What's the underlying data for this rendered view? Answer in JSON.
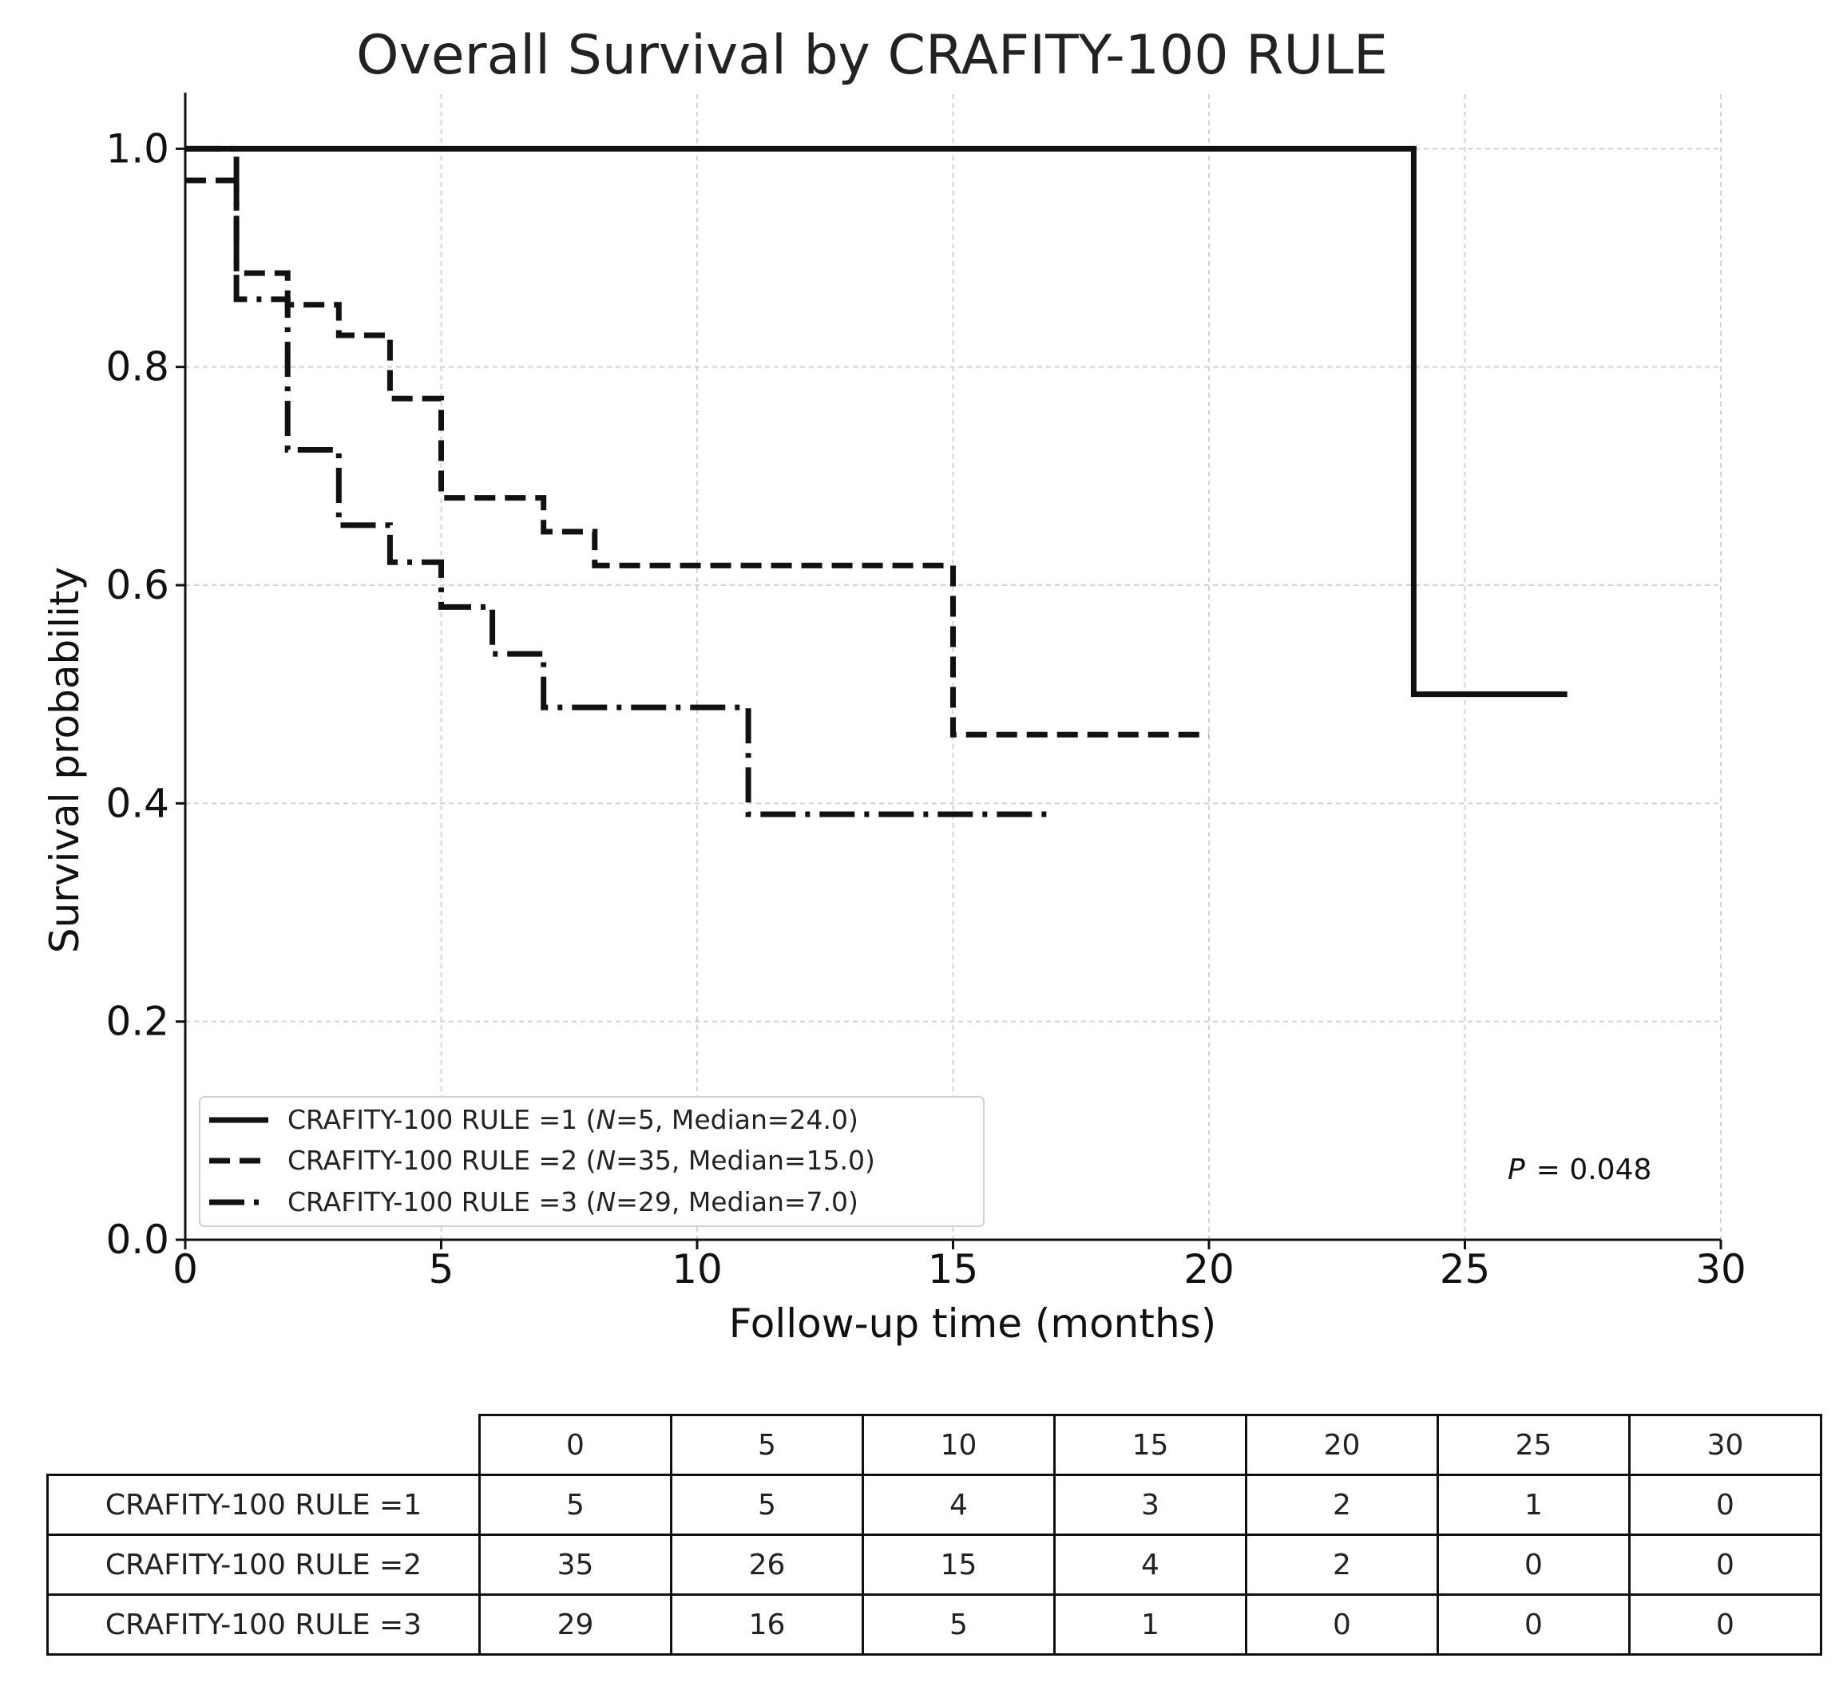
{
  "chart_data": {
    "type": "line",
    "title": "Overall Survival by CRAFITY-100 RULE",
    "xlabel": "Follow-up time (months)",
    "ylabel": "Survival probability",
    "xlim": [
      0,
      30
    ],
    "ylim": [
      0,
      1.05
    ],
    "xticks": [
      0,
      5,
      10,
      15,
      20,
      25,
      30
    ],
    "xtick_labels": [
      "0",
      "5",
      "10",
      "15",
      "20",
      "25",
      "30"
    ],
    "yticks": [
      0,
      0.2,
      0.4,
      0.6,
      0.8,
      1.0
    ],
    "ytick_labels": [
      "0.0",
      "0.2",
      "0.4",
      "0.6",
      "0.8",
      "1.0"
    ],
    "grid": true,
    "legend_position": "lower-left",
    "p_value_text": "= 0.048",
    "p_label": "P",
    "series": [
      {
        "name": "CRAFITY-100 RULE =1",
        "legend_label": "CRAFITY-100 RULE =1 (",
        "legend_n": "N",
        "legend_suffix": "=5, Median=24.0)",
        "style": "solid",
        "n": 5,
        "median": 24.0,
        "steps": [
          [
            0,
            1.0
          ],
          [
            24,
            0.5
          ],
          [
            27,
            0.5
          ]
        ]
      },
      {
        "name": "CRAFITY-100 RULE =2",
        "legend_label": "CRAFITY-100 RULE =2 (",
        "legend_n": "N",
        "legend_suffix": "=35, Median=15.0)",
        "style": "dashed",
        "n": 35,
        "median": 15.0,
        "steps": [
          [
            0,
            0.971
          ],
          [
            1,
            0.886
          ],
          [
            2,
            0.857
          ],
          [
            3,
            0.829
          ],
          [
            4,
            0.771
          ],
          [
            5,
            0.68
          ],
          [
            7,
            0.649
          ],
          [
            8,
            0.618
          ],
          [
            15,
            0.463
          ],
          [
            20,
            0.463
          ]
        ]
      },
      {
        "name": "CRAFITY-100 RULE =3",
        "legend_label": "CRAFITY-100 RULE =3 (",
        "legend_n": "N",
        "legend_suffix": "=29, Median=7.0)",
        "style": "dashdot",
        "n": 29,
        "median": 7.0,
        "steps": [
          [
            0,
            1.0
          ],
          [
            1,
            0.862
          ],
          [
            2,
            0.724
          ],
          [
            3,
            0.655
          ],
          [
            4,
            0.621
          ],
          [
            5,
            0.58
          ],
          [
            6,
            0.537
          ],
          [
            7,
            0.488
          ],
          [
            11,
            0.39
          ],
          [
            17,
            0.39
          ]
        ]
      }
    ]
  },
  "risk_table": {
    "times": [
      "0",
      "5",
      "10",
      "15",
      "20",
      "25",
      "30"
    ],
    "rows": [
      {
        "label": "CRAFITY-100 RULE =1",
        "counts": [
          "5",
          "5",
          "4",
          "3",
          "2",
          "1",
          "0"
        ]
      },
      {
        "label": "CRAFITY-100 RULE =2",
        "counts": [
          "35",
          "26",
          "15",
          "4",
          "2",
          "0",
          "0"
        ]
      },
      {
        "label": "CRAFITY-100 RULE =3",
        "counts": [
          "29",
          "16",
          "5",
          "1",
          "0",
          "0",
          "0"
        ]
      }
    ]
  }
}
